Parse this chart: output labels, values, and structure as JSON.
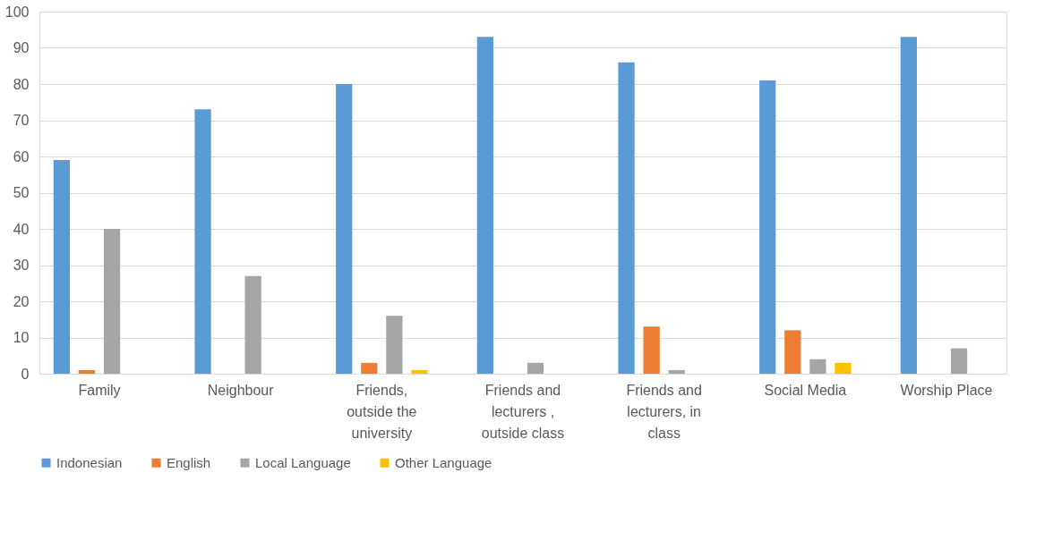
{
  "chart_data": {
    "type": "bar",
    "categories": [
      "Family",
      "Neighbour",
      "Friends, outside the university",
      "Friends and lecturers , outside class",
      "Friends and lecturers, in class",
      "Social Media",
      "Worship Place"
    ],
    "series": [
      {
        "name": "Indonesian",
        "color": "#5b9bd5",
        "values": [
          59,
          73,
          80,
          93,
          86,
          81,
          93
        ]
      },
      {
        "name": "English",
        "color": "#ed7d31",
        "values": [
          1,
          0,
          3,
          0,
          13,
          12,
          0
        ]
      },
      {
        "name": "Local Language",
        "color": "#a5a5a5",
        "values": [
          40,
          27,
          16,
          3,
          1,
          4,
          7
        ]
      },
      {
        "name": "Other Language",
        "color": "#ffc000",
        "values": [
          0,
          0,
          1,
          0,
          0,
          3,
          0
        ]
      }
    ],
    "ylim": [
      0,
      100
    ],
    "yticks": [
      0,
      10,
      20,
      30,
      40,
      50,
      60,
      70,
      80,
      90,
      100
    ],
    "grid": "y",
    "legend": "bottom"
  }
}
